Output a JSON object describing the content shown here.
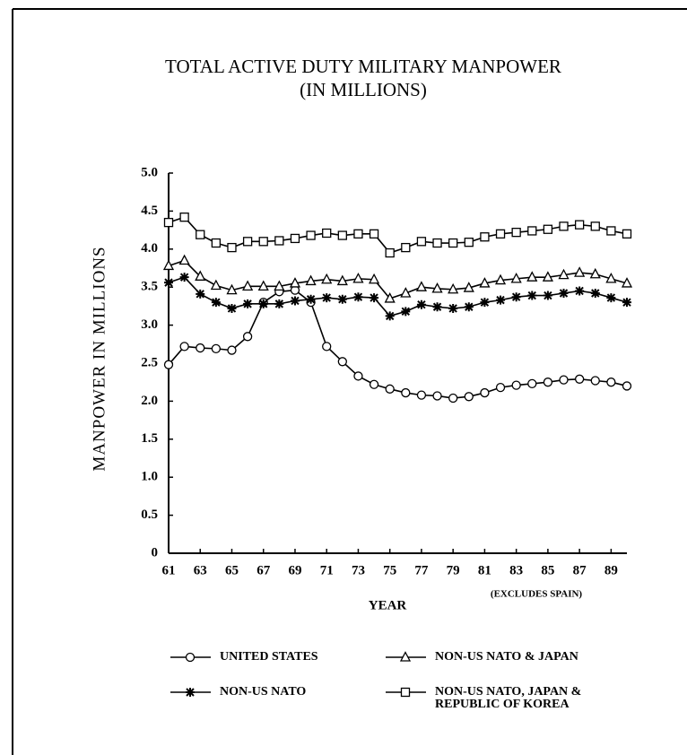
{
  "chart_data": {
    "type": "line",
    "title": "TOTAL ACTIVE DUTY MILITARY MANPOWER",
    "subtitle": "(IN MILLIONS)",
    "x_label": "YEAR",
    "y_label": "MANPOWER IN MILLIONS",
    "annotation": "(EXCLUDES SPAIN)",
    "x": [
      61,
      62,
      63,
      64,
      65,
      66,
      67,
      68,
      69,
      70,
      71,
      72,
      73,
      74,
      75,
      76,
      77,
      78,
      79,
      80,
      81,
      82,
      83,
      84,
      85,
      86,
      87,
      88,
      89,
      90
    ],
    "xlim": [
      61,
      90
    ],
    "xticks": [
      61,
      63,
      65,
      67,
      69,
      71,
      73,
      75,
      77,
      79,
      81,
      83,
      85,
      87,
      89
    ],
    "ylim": [
      0,
      5
    ],
    "yticks": [
      0,
      0.5,
      {
        "value": 1,
        "label": "1.0"
      },
      1.5,
      {
        "value": 2,
        "label": "2.0"
      },
      2.5,
      {
        "value": 3,
        "label": "3.0"
      },
      3.5,
      {
        "value": 4,
        "label": "4.0"
      },
      4.5,
      {
        "value": 5,
        "label": "5.0"
      }
    ],
    "series": [
      {
        "name": "UNITED STATES",
        "color": "#000000",
        "marker": "circle",
        "values": [
          2.48,
          2.72,
          2.7,
          2.69,
          2.67,
          2.85,
          3.3,
          3.44,
          3.46,
          3.3,
          2.72,
          2.52,
          2.33,
          2.22,
          2.16,
          2.11,
          2.08,
          2.07,
          2.04,
          2.06,
          2.11,
          2.18,
          2.21,
          2.23,
          2.25,
          2.28,
          2.29,
          2.27,
          2.25,
          2.2
        ]
      },
      {
        "name": "NON-US NATO & JAPAN",
        "color": "#000000",
        "marker": "triangle",
        "values": [
          3.78,
          3.85,
          3.64,
          3.52,
          3.46,
          3.51,
          3.51,
          3.51,
          3.55,
          3.58,
          3.6,
          3.58,
          3.61,
          3.6,
          3.35,
          3.42,
          3.5,
          3.48,
          3.47,
          3.49,
          3.55,
          3.59,
          3.61,
          3.63,
          3.63,
          3.66,
          3.69,
          3.67,
          3.61,
          3.55
        ]
      },
      {
        "name": "NON-US NATO",
        "color": "#000000",
        "marker": "asterisk",
        "values": [
          3.56,
          3.63,
          3.41,
          3.3,
          3.22,
          3.28,
          3.28,
          3.28,
          3.32,
          3.34,
          3.36,
          3.34,
          3.37,
          3.36,
          3.12,
          3.18,
          3.27,
          3.24,
          3.22,
          3.24,
          3.3,
          3.33,
          3.37,
          3.39,
          3.39,
          3.42,
          3.45,
          3.42,
          3.36,
          3.3
        ]
      },
      {
        "name": "NON-US NATO, JAPAN & REPUBLIC OF KOREA",
        "color": "#000000",
        "marker": "square",
        "values": [
          4.35,
          4.42,
          4.19,
          4.08,
          4.02,
          4.1,
          4.1,
          4.11,
          4.14,
          4.18,
          4.21,
          4.18,
          4.2,
          4.2,
          3.95,
          4.02,
          4.1,
          4.08,
          4.08,
          4.09,
          4.16,
          4.2,
          4.22,
          4.24,
          4.26,
          4.3,
          4.32,
          4.3,
          4.24,
          4.2
        ]
      }
    ]
  }
}
